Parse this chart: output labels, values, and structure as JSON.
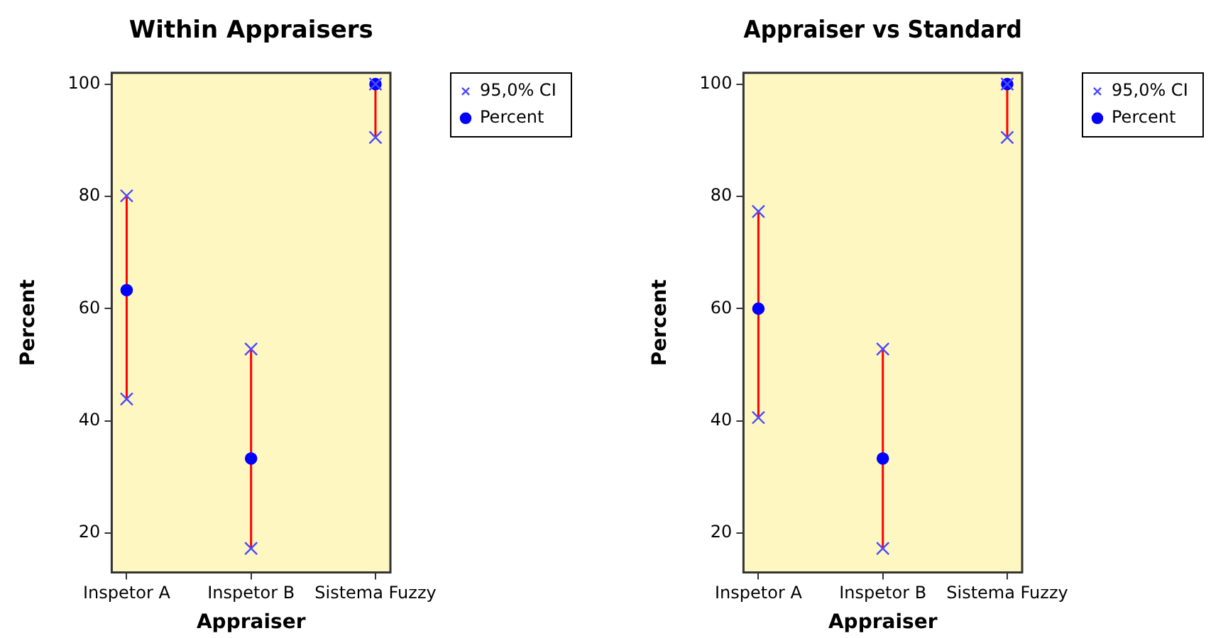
{
  "chart_data": [
    {
      "type": "scatter",
      "title": "Within Appraisers",
      "xlabel": "Appraiser",
      "ylabel": "Percent",
      "categories": [
        "Inspetor A",
        "Inspetor B",
        "Sistema Fuzzy"
      ],
      "ylim": [
        13,
        102
      ],
      "yticks": [
        20,
        40,
        60,
        80,
        100
      ],
      "grid": false,
      "legend": "top right",
      "series": [
        {
          "name": "95,0% CI",
          "marker": "cross",
          "color": "#4a4aff",
          "x": [
            "Inspetor A",
            "Inspetor A",
            "Inspetor B",
            "Inspetor B",
            "Sistema Fuzzy",
            "Sistema Fuzzy"
          ],
          "values": [
            43.9,
            80.1,
            17.3,
            52.8,
            90.5,
            100
          ]
        },
        {
          "name": "Percent",
          "marker": "circle",
          "color": "#0000ff",
          "values": [
            63.3,
            33.3,
            100
          ],
          "errors": [
            [
              43.9,
              80.1
            ],
            [
              17.3,
              52.8
            ],
            [
              90.5,
              100
            ]
          ]
        }
      ]
    },
    {
      "type": "scatter",
      "title": "Appraiser vs Standard",
      "xlabel": "Appraiser",
      "ylabel": "Percent",
      "categories": [
        "Inspetor A",
        "Inspetor B",
        "Sistema Fuzzy"
      ],
      "ylim": [
        13,
        102
      ],
      "yticks": [
        20,
        40,
        60,
        80,
        100
      ],
      "grid": false,
      "legend": "top right",
      "series": [
        {
          "name": "95,0% CI",
          "marker": "cross",
          "color": "#4a4aff",
          "x": [
            "Inspetor A",
            "Inspetor A",
            "Inspetor B",
            "Inspetor B",
            "Sistema Fuzzy",
            "Sistema Fuzzy"
          ],
          "values": [
            40.6,
            77.3,
            17.3,
            52.8,
            90.5,
            100
          ]
        },
        {
          "name": "Percent",
          "marker": "circle",
          "color": "#0000ff",
          "values": [
            60,
            33.3,
            100
          ],
          "errors": [
            [
              40.6,
              77.3
            ],
            [
              17.3,
              52.8
            ],
            [
              90.5,
              100
            ]
          ]
        }
      ]
    }
  ]
}
